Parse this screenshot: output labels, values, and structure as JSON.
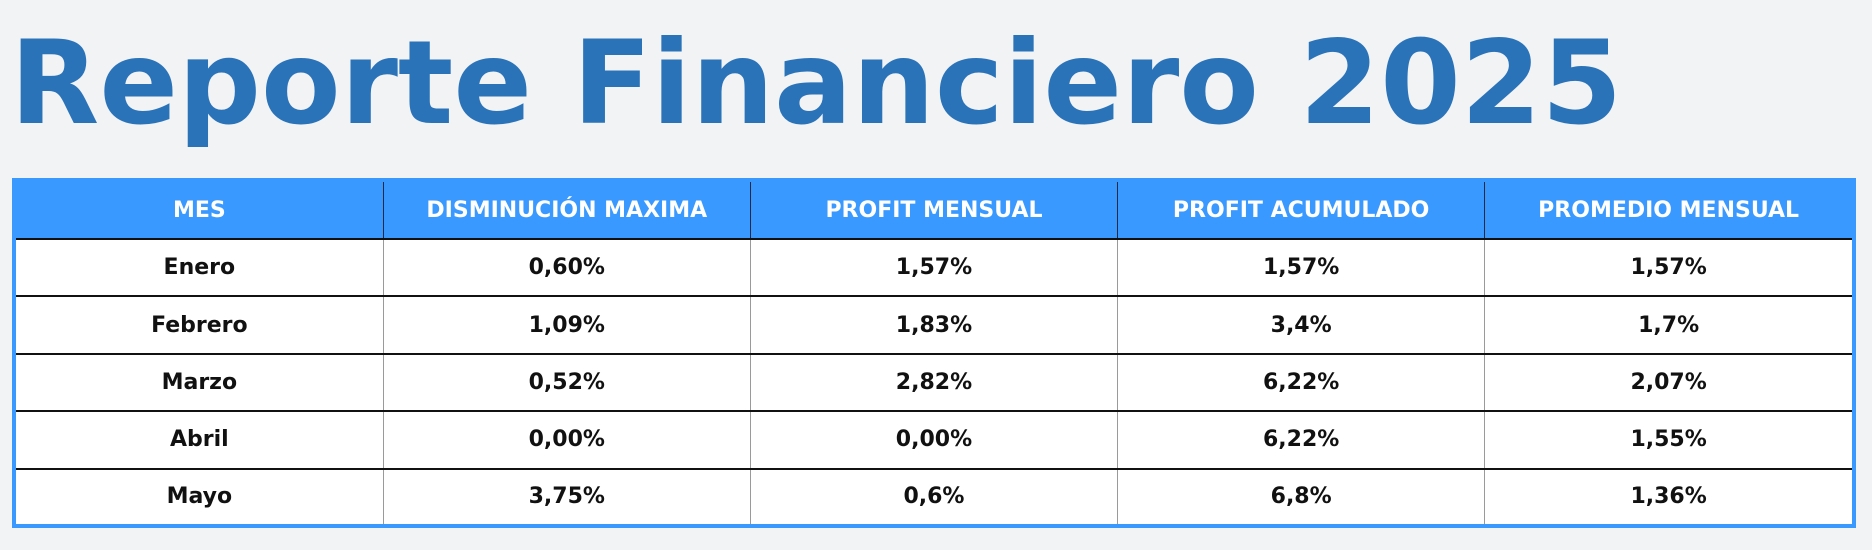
{
  "title": "Reporte Financiero 2025",
  "colors": {
    "title": "#2a73b9",
    "header_bg": "#3a99ff",
    "header_text": "#ffffff",
    "background": "#f1f3f5"
  },
  "table": {
    "headers": [
      "MES",
      "DISMINUCIÓN MAXIMA",
      "PROFIT MENSUAL",
      "PROFIT ACUMULADO",
      "PROMEDIO MENSUAL"
    ],
    "rows": [
      [
        "Enero",
        "0,60%",
        "1,57%",
        "1,57%",
        "1,57%"
      ],
      [
        "Febrero",
        "1,09%",
        "1,83%",
        "3,4%",
        "1,7%"
      ],
      [
        "Marzo",
        "0,52%",
        "2,82%",
        "6,22%",
        "2,07%"
      ],
      [
        "Abril",
        "0,00%",
        "0,00%",
        "6,22%",
        "1,55%"
      ],
      [
        "Mayo",
        "3,75%",
        "0,6%",
        "6,8%",
        "1,36%"
      ]
    ]
  }
}
